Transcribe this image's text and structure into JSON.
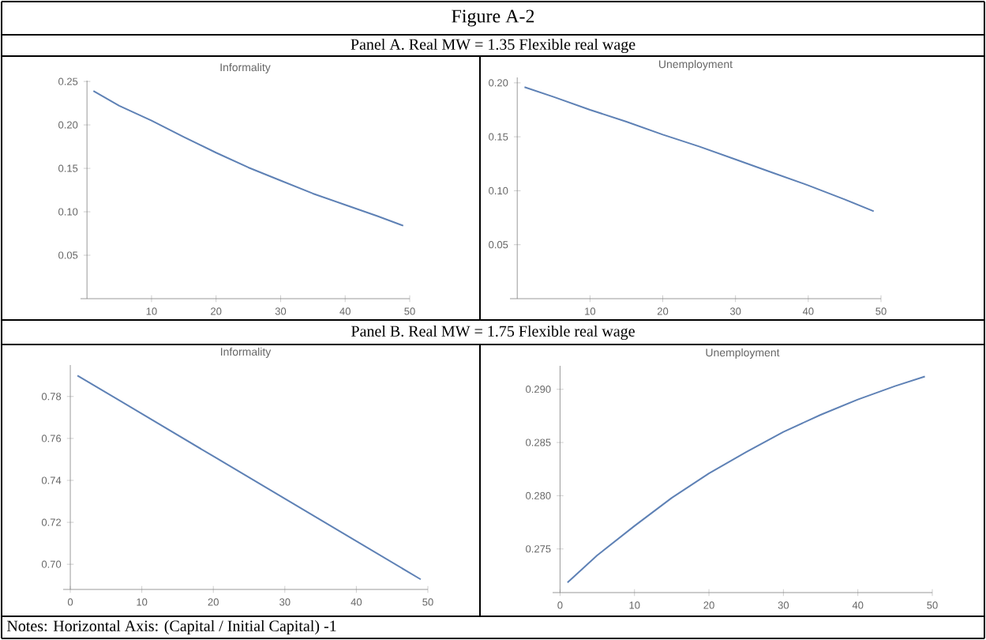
{
  "chart_data": [
    {
      "type": "line",
      "title": "Informality",
      "annotations": [
        "Figure A-2",
        "Panel A. Real MW = 1.35 Flexible real wage"
      ],
      "x": [
        1,
        5,
        10,
        15,
        20,
        25,
        30,
        35,
        40,
        45,
        49
      ],
      "xlim": [
        -1,
        50
      ],
      "ylim": [
        0,
        0.251
      ],
      "xticks": [
        10,
        20,
        30,
        40,
        50
      ],
      "yticks": [
        {
          "value": 0.05,
          "label": "0.05"
        },
        {
          "value": 0.1,
          "label": "0.10"
        },
        {
          "value": 0.15,
          "label": "0.15"
        },
        {
          "value": 0.2,
          "label": "0.20"
        },
        {
          "value": 0.25,
          "label": "0.25"
        }
      ],
      "series": [
        {
          "color": "#5e81b5",
          "values": [
            0.239,
            0.222,
            0.205,
            0.186,
            0.168,
            0.151,
            0.136,
            0.121,
            0.108,
            0.095,
            0.084
          ]
        }
      ]
    },
    {
      "type": "line",
      "title": "Unemployment",
      "x": [
        1,
        5,
        10,
        15,
        20,
        25,
        30,
        35,
        40,
        45,
        49
      ],
      "xlim": [
        -1,
        50
      ],
      "ylim": [
        0,
        0.205
      ],
      "xticks": [
        10,
        20,
        30,
        40,
        50
      ],
      "yticks": [
        {
          "value": 0.05,
          "label": "0.05"
        },
        {
          "value": 0.1,
          "label": "0.10"
        },
        {
          "value": 0.15,
          "label": "0.15"
        },
        {
          "value": 0.2,
          "label": "0.20"
        }
      ],
      "series": [
        {
          "color": "#5e81b5",
          "values": [
            0.196,
            0.187,
            0.175,
            0.164,
            0.152,
            0.141,
            0.129,
            0.117,
            0.105,
            0.092,
            0.081
          ]
        }
      ]
    },
    {
      "type": "line",
      "title": "Informality",
      "annotations": [
        "Panel B. Real MW = 1.75 Flexible real wage",
        "Notes: Horizontal Axis: (Capital / Initial Capital) -1"
      ],
      "x": [
        1,
        10,
        20,
        30,
        40,
        49
      ],
      "xlim": [
        -1,
        50
      ],
      "ylim": [
        0.688,
        0.795
      ],
      "xticks": [
        0,
        10,
        20,
        30,
        40,
        50
      ],
      "yticks": [
        {
          "value": 0.7,
          "label": "0.70"
        },
        {
          "value": 0.72,
          "label": "0.72"
        },
        {
          "value": 0.74,
          "label": "0.74"
        },
        {
          "value": 0.76,
          "label": "0.76"
        },
        {
          "value": 0.78,
          "label": "0.78"
        }
      ],
      "series": [
        {
          "color": "#5e81b5",
          "values": [
            0.79,
            0.7718,
            0.7515,
            0.7313,
            0.711,
            0.6928
          ]
        }
      ]
    },
    {
      "type": "line",
      "title": "Unemployment",
      "x": [
        1,
        5,
        10,
        15,
        20,
        25,
        30,
        35,
        40,
        45,
        49
      ],
      "xlim": [
        -1,
        50
      ],
      "ylim": [
        0.2709,
        0.2922
      ],
      "xticks": [
        0,
        10,
        20,
        30,
        40,
        50
      ],
      "yticks": [
        {
          "value": 0.275,
          "label": "0.275"
        },
        {
          "value": 0.28,
          "label": "0.280"
        },
        {
          "value": 0.285,
          "label": "0.285"
        },
        {
          "value": 0.29,
          "label": "0.290"
        }
      ],
      "series": [
        {
          "color": "#5e81b5",
          "values": [
            0.27185,
            0.2744,
            0.27716,
            0.2798,
            0.2821,
            0.2841,
            0.286,
            0.2876,
            0.28904,
            0.2903,
            0.2912
          ]
        }
      ]
    }
  ]
}
